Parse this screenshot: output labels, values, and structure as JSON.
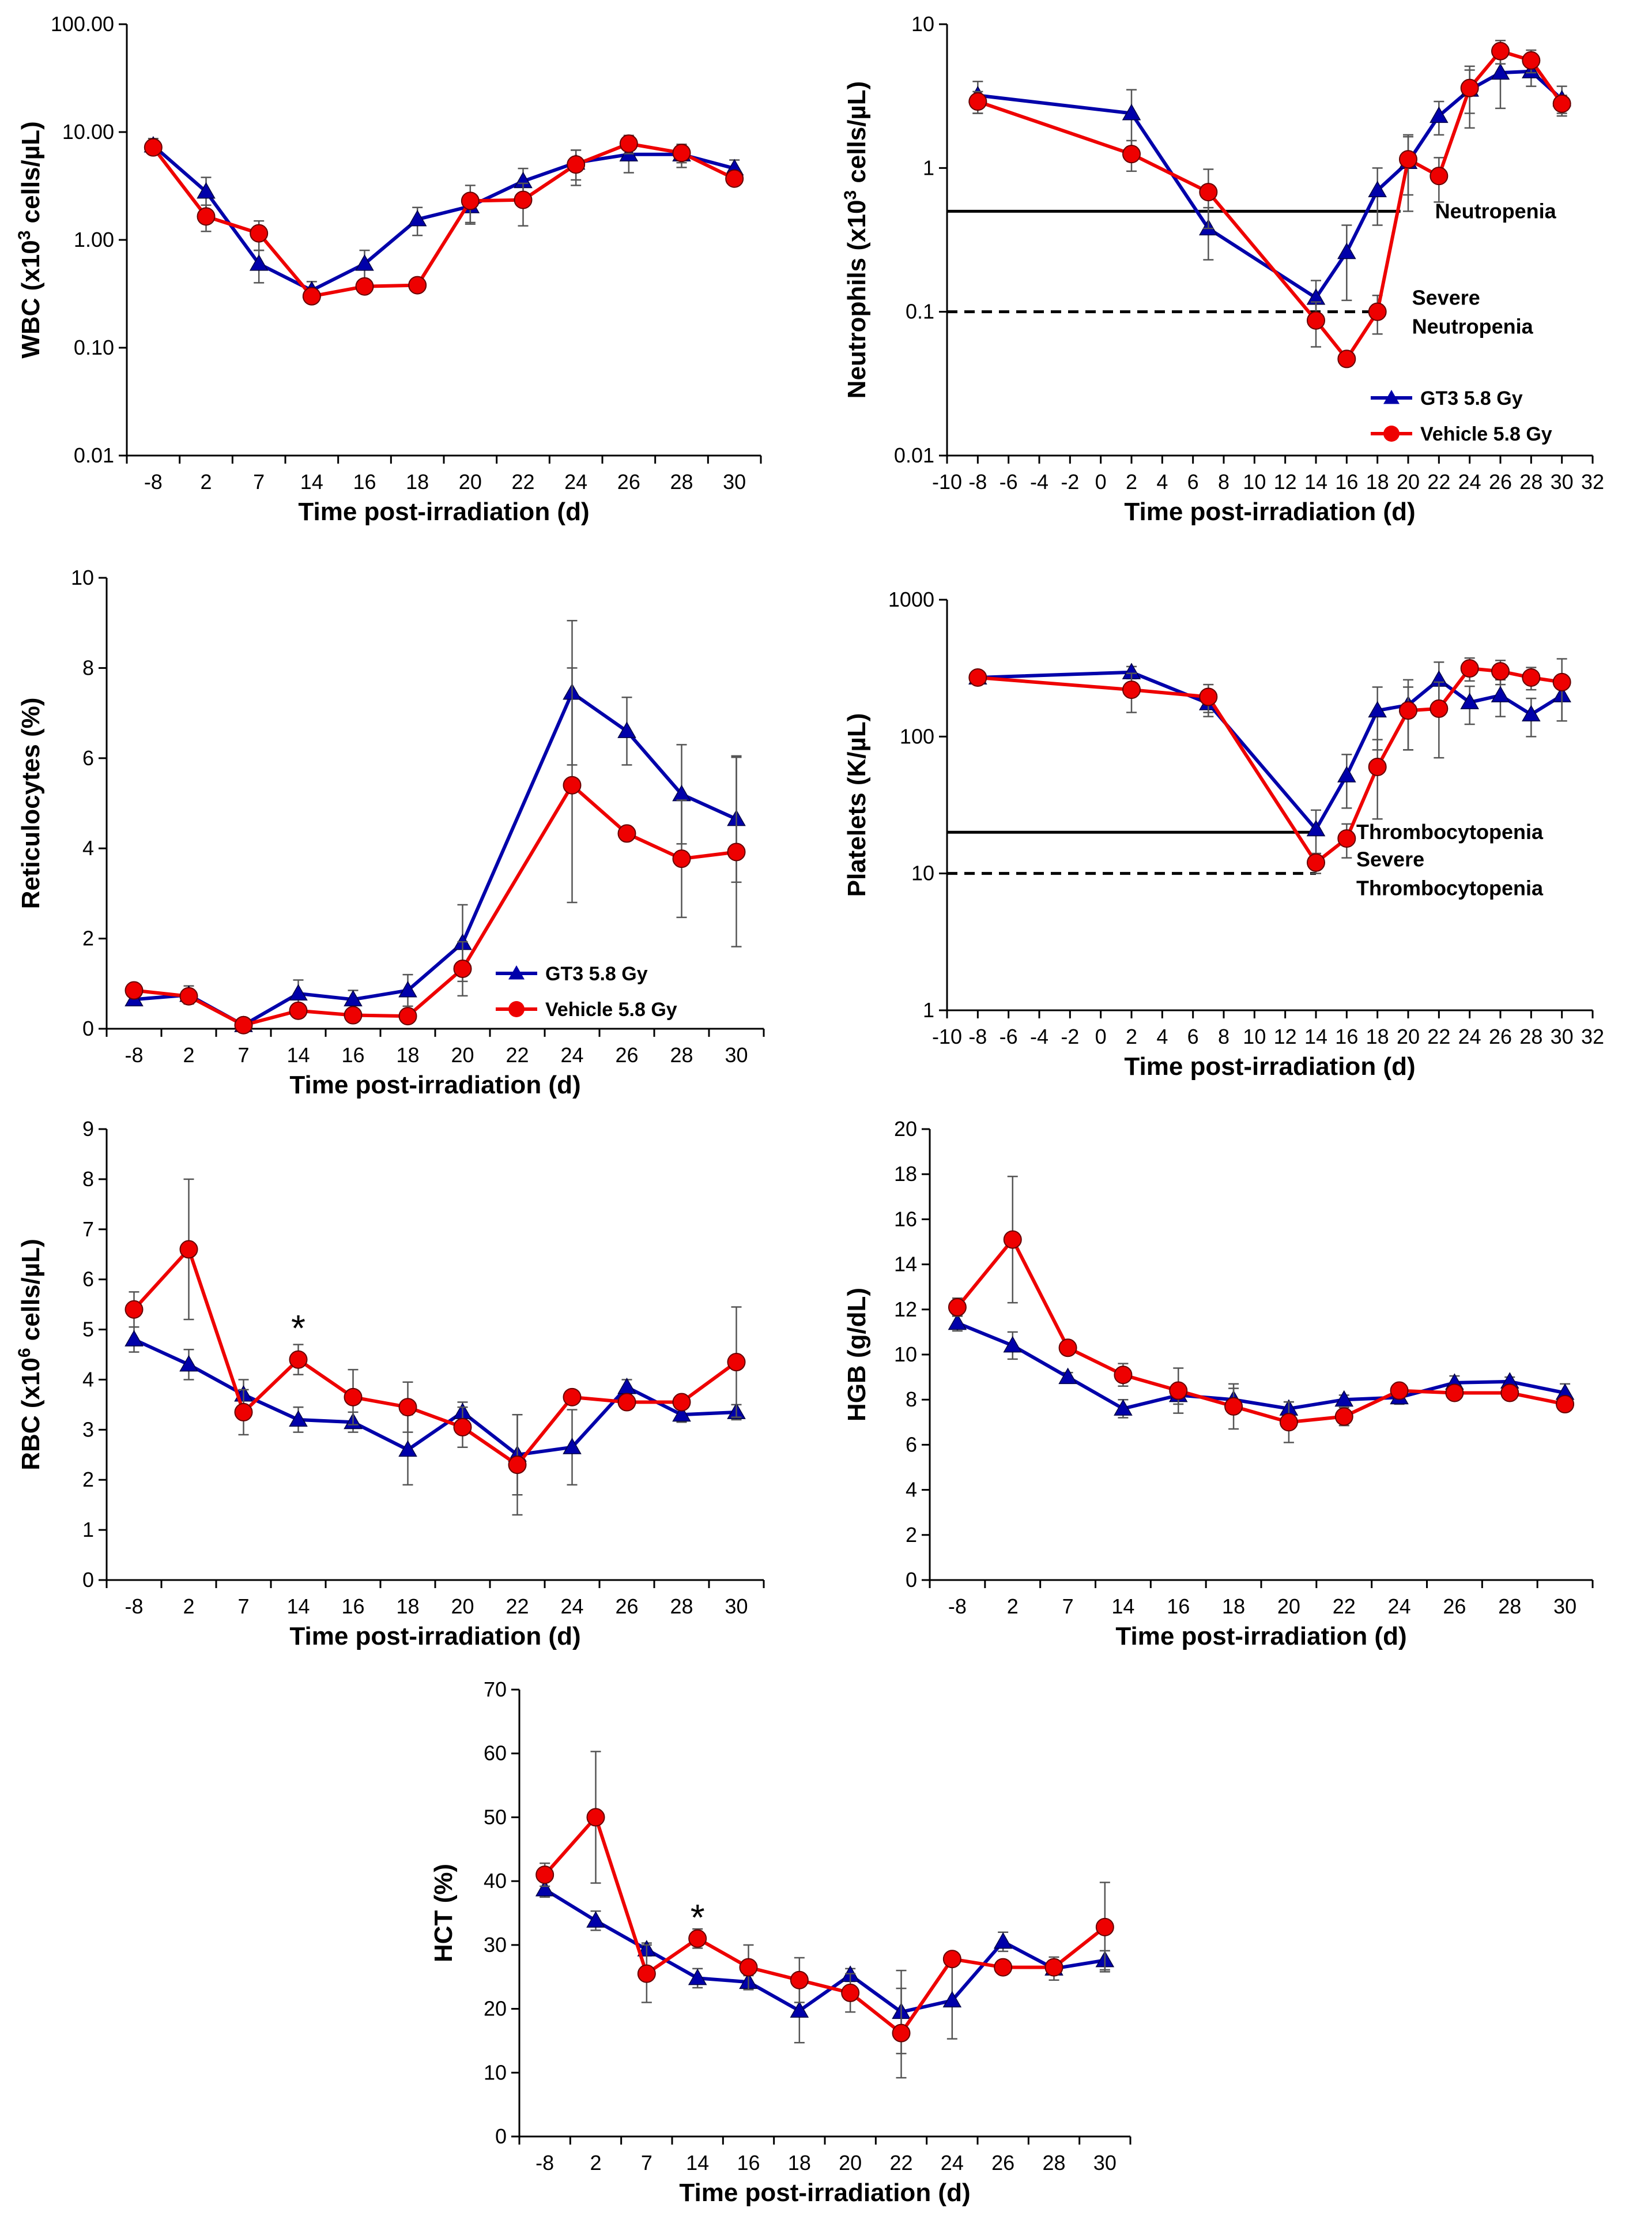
{
  "colors": {
    "gt3": "#0000aa",
    "vehicle": "#ee0000",
    "axis": "#000000",
    "error": "#555555"
  },
  "icons": {
    "gt3_marker": "triangle-marker-icon",
    "vehicle_marker": "circle-marker-icon"
  },
  "chart_data": [
    {
      "id": "wbc",
      "type": "line",
      "xscale": "category",
      "yscale": "log",
      "categories": [
        "-8",
        "2",
        "7",
        "14",
        "16",
        "18",
        "20",
        "22",
        "24",
        "26",
        "28",
        "30"
      ],
      "ylim": [
        0.01,
        100
      ],
      "yticks": [
        0.01,
        0.1,
        1,
        10,
        100
      ],
      "ytick_labels": [
        "0.01",
        "0.10",
        "1.00",
        "10.00",
        "100.00"
      ],
      "xlabel": "Time post-irradiation (d)",
      "ylabel_parts": [
        "WBC (x10",
        "3",
        " cells/µL)"
      ],
      "series": [
        {
          "name": "GT3 5.8 Gy",
          "values": [
            7.5,
            2.8,
            0.6,
            0.34,
            0.6,
            1.55,
            2.05,
            3.5,
            5.2,
            6.2,
            6.2,
            4.6
          ],
          "errors": [
            1.2,
            1.0,
            0.2,
            0.07,
            0.2,
            0.45,
            0.6,
            1.1,
            1.6,
            2.0,
            1.5,
            0.9
          ]
        },
        {
          "name": "Vehicle 5.8 Gy",
          "values": [
            7.2,
            1.65,
            1.15,
            0.3,
            0.37,
            0.38,
            2.3,
            2.35,
            5.0,
            7.8,
            6.4,
            3.7
          ],
          "errors": [
            1.0,
            0.45,
            0.35,
            0.04,
            0.05,
            0.04,
            0.9,
            1.0,
            1.8,
            1.5,
            1.2,
            0.4
          ]
        }
      ]
    },
    {
      "id": "neutrophils",
      "type": "line",
      "xscale": "linear",
      "yscale": "log",
      "x": [
        -8,
        2,
        7,
        14,
        16,
        18,
        20,
        22,
        24,
        26,
        28,
        30
      ],
      "xlim": [
        -10,
        32
      ],
      "xticks": [
        -10,
        -8,
        -6,
        -4,
        -2,
        0,
        2,
        4,
        6,
        8,
        10,
        12,
        14,
        16,
        18,
        20,
        22,
        24,
        26,
        28,
        30,
        32
      ],
      "xtick_labels": [
        "-10",
        "-8",
        "-6",
        "-4",
        "-2",
        "0",
        "2",
        "4",
        "6",
        "8",
        "10",
        "12",
        "14",
        "16",
        "18",
        "20",
        "22",
        "24",
        "26",
        "28",
        "30",
        "32"
      ],
      "ylim": [
        0.01,
        10
      ],
      "yticks": [
        0.01,
        0.1,
        1,
        10
      ],
      "ytick_labels": [
        "0.01",
        "0.1",
        "1",
        "10"
      ],
      "xlabel": "Time post-irradiation (d)",
      "ylabel_parts": [
        "Neutrophils (x10",
        "3",
        " cells/µL)"
      ],
      "series": [
        {
          "name": "GT3 5.8 Gy",
          "values": [
            3.2,
            2.4,
            0.38,
            0.125,
            0.26,
            0.7,
            1.1,
            2.3,
            3.5,
            4.6,
            4.7,
            3.0
          ],
          "errors": [
            0.8,
            1.1,
            0.15,
            0.04,
            0.14,
            0.3,
            0.6,
            0.6,
            1.6,
            2.0,
            1.0,
            0.7
          ]
        },
        {
          "name": "Vehicle 5.8 Gy",
          "values": [
            2.9,
            1.25,
            0.68,
            0.087,
            0.047,
            0.1,
            1.15,
            0.88,
            3.6,
            6.5,
            5.6,
            2.8
          ],
          "errors": [
            0.5,
            0.3,
            0.3,
            0.03,
            0.005,
            0.03,
            0.5,
            0.3,
            1.2,
            1.2,
            1.0,
            0.4
          ]
        }
      ],
      "reference_lines": [
        {
          "label_lines": [
            "Neutropenia"
          ],
          "y": 0.5,
          "x_from": -10,
          "x_to": 19.5,
          "style": "solid"
        },
        {
          "label_lines": [
            "Severe",
            "Neutropenia"
          ],
          "y": 0.1,
          "x_from": -10,
          "x_to": 18,
          "style": "dashed"
        }
      ],
      "legend": {
        "position": "bottom-right",
        "entries": [
          "GT3 5.8 Gy",
          "Vehicle 5.8 Gy"
        ]
      }
    },
    {
      "id": "reticulocytes",
      "type": "line",
      "xscale": "category",
      "yscale": "linear",
      "categories": [
        "-8",
        "2",
        "7",
        "14",
        "16",
        "18",
        "20",
        "22",
        "24",
        "26",
        "28",
        "30"
      ],
      "ylim": [
        0,
        10
      ],
      "yticks": [
        0,
        2,
        4,
        6,
        8,
        10
      ],
      "ytick_labels": [
        "0",
        "2",
        "4",
        "6",
        "8",
        "10"
      ],
      "xlabel": "Time post-irradiation (d)",
      "ylabel_parts": [
        "Reticulocytes (%)",
        "",
        ""
      ],
      "series": [
        {
          "name": "GT3 5.8 Gy",
          "values": [
            0.65,
            0.75,
            0.08,
            0.78,
            0.65,
            0.85,
            1.9,
            null,
            7.45,
            6.6,
            5.2,
            4.65
          ],
          "errors": [
            0.1,
            0.2,
            0.02,
            0.3,
            0.2,
            0.35,
            0.85,
            null,
            1.6,
            0.75,
            1.1,
            1.4
          ]
        },
        {
          "name": "Vehicle 5.8 Gy",
          "values": [
            0.85,
            0.72,
            0.08,
            0.4,
            0.3,
            0.28,
            1.33,
            null,
            5.4,
            4.33,
            3.77,
            3.92
          ],
          "errors": [
            0.1,
            0.15,
            0.03,
            0.1,
            0.05,
            0.05,
            0.6,
            null,
            2.6,
            0.1,
            1.3,
            2.1
          ]
        }
      ],
      "legend": {
        "position": "bottom-right",
        "entries": [
          "GT3 5.8 Gy",
          "Vehicle 5.8 Gy"
        ]
      }
    },
    {
      "id": "platelets",
      "type": "line",
      "xscale": "linear",
      "yscale": "log",
      "x": [
        -8,
        2,
        7,
        14,
        16,
        18,
        20,
        22,
        24,
        26,
        28,
        30
      ],
      "xlim": [
        -10,
        32
      ],
      "xticks": [
        -10,
        -8,
        -6,
        -4,
        -2,
        0,
        2,
        4,
        6,
        8,
        10,
        12,
        14,
        16,
        18,
        20,
        22,
        24,
        26,
        28,
        30,
        32
      ],
      "xtick_labels": [
        "-10",
        "-8",
        "-6",
        "-4",
        "-2",
        "0",
        "2",
        "4",
        "6",
        "8",
        "10",
        "12",
        "14",
        "16",
        "18",
        "20",
        "22",
        "24",
        "26",
        "28",
        "30",
        "32"
      ],
      "ylim": [
        1,
        1000
      ],
      "yticks": [
        1,
        10,
        100,
        1000
      ],
      "ytick_labels": [
        "1",
        "10",
        "100",
        "1000"
      ],
      "xlabel": "Time post-irradiation (d)",
      "ylabel_parts": [
        "Platelets (K/µL)",
        "",
        ""
      ],
      "series": [
        {
          "name": "GT3 5.8 Gy",
          "values": [
            270,
            295,
            175,
            21,
            52,
            155,
            170,
            260,
            178,
            200,
            145,
            200
          ],
          "errors": [
            20,
            30,
            35,
            8,
            22,
            75,
            90,
            90,
            55,
            60,
            45,
            70
          ]
        },
        {
          "name": "Vehicle 5.8 Gy",
          "values": [
            270,
            220,
            195,
            12,
            18,
            60,
            155,
            160,
            315,
            300,
            270,
            250
          ],
          "errors": [
            25,
            70,
            45,
            2,
            5,
            35,
            75,
            90,
            60,
            60,
            50,
            120
          ]
        }
      ],
      "reference_lines": [
        {
          "label_lines": [
            "Thrombocytopenia"
          ],
          "y": 20,
          "x_from": -10,
          "x_to": 14,
          "style": "solid"
        },
        {
          "label_lines": [
            "Severe",
            "Thrombocytopenia"
          ],
          "y": 10,
          "x_from": -10,
          "x_to": 14,
          "style": "dashed"
        }
      ]
    },
    {
      "id": "rbc",
      "type": "line",
      "xscale": "category",
      "yscale": "linear",
      "categories": [
        "-8",
        "2",
        "7",
        "14",
        "16",
        "18",
        "20",
        "22",
        "24",
        "26",
        "28",
        "30"
      ],
      "ylim": [
        0,
        9
      ],
      "yticks": [
        0,
        1,
        2,
        3,
        4,
        5,
        6,
        7,
        8,
        9
      ],
      "ytick_labels": [
        "0",
        "1",
        "2",
        "3",
        "4",
        "5",
        "6",
        "7",
        "8",
        "9"
      ],
      "xlabel": "Time post-irradiation (d)",
      "ylabel_parts": [
        "RBC (x10",
        "6",
        " cells/µL)"
      ],
      "series": [
        {
          "name": "GT3 5.8 Gy",
          "values": [
            4.8,
            4.3,
            3.7,
            3.2,
            3.15,
            2.6,
            3.35,
            2.5,
            2.65,
            3.85,
            3.3,
            3.35
          ],
          "errors": [
            0.25,
            0.3,
            0.3,
            0.25,
            0.2,
            0.7,
            0.2,
            0.8,
            0.75,
            0.15,
            0.15,
            0.15
          ]
        },
        {
          "name": "Vehicle 5.8 Gy",
          "values": [
            5.4,
            6.6,
            3.35,
            4.4,
            3.65,
            3.45,
            3.05,
            2.3,
            3.65,
            3.55,
            3.55,
            4.35
          ],
          "errors": [
            0.35,
            1.4,
            0.45,
            0.3,
            0.55,
            0.5,
            0.4,
            1.0,
            0.1,
            0.1,
            0.1,
            1.1
          ]
        }
      ],
      "annotations": [
        {
          "text": "*",
          "category_index": 3,
          "y": 5.05
        }
      ]
    },
    {
      "id": "hgb",
      "type": "line",
      "xscale": "category",
      "yscale": "linear",
      "categories": [
        "-8",
        "2",
        "7",
        "14",
        "16",
        "18",
        "20",
        "22",
        "24",
        "26",
        "28",
        "30"
      ],
      "ylim": [
        0,
        20
      ],
      "yticks": [
        0,
        2,
        4,
        6,
        8,
        10,
        12,
        14,
        16,
        18,
        20
      ],
      "ytick_labels": [
        "0",
        "2",
        "4",
        "6",
        "8",
        "10",
        "12",
        "14",
        "16",
        "18",
        "20"
      ],
      "xlabel": "Time post-irradiation (d)",
      "ylabel_parts": [
        "HGB (g/dL)",
        "",
        ""
      ],
      "series": [
        {
          "name": "GT3 5.8 Gy",
          "values": [
            11.4,
            10.4,
            9.0,
            7.6,
            8.2,
            8.0,
            7.6,
            8.0,
            8.1,
            8.75,
            8.8,
            8.3
          ],
          "errors": [
            0.35,
            0.6,
            0.2,
            0.4,
            0.4,
            0.5,
            0.3,
            0.2,
            0.3,
            0.3,
            0.2,
            0.4
          ]
        },
        {
          "name": "Vehicle 5.8 Gy",
          "values": [
            12.1,
            15.1,
            10.3,
            9.1,
            8.4,
            7.7,
            7.0,
            7.25,
            8.4,
            8.3,
            8.3,
            7.8
          ],
          "errors": [
            0.4,
            2.8,
            0.3,
            0.5,
            1.0,
            1.0,
            0.9,
            0.4,
            0.2,
            0.2,
            0.2,
            0.2
          ]
        }
      ]
    },
    {
      "id": "hct",
      "type": "line",
      "xscale": "category",
      "yscale": "linear",
      "categories": [
        "-8",
        "2",
        "7",
        "14",
        "16",
        "18",
        "20",
        "22",
        "24",
        "26",
        "28",
        "30"
      ],
      "ylim": [
        0,
        70
      ],
      "yticks": [
        0,
        10,
        20,
        30,
        40,
        50,
        60,
        70
      ],
      "ytick_labels": [
        "0",
        "10",
        "20",
        "30",
        "40",
        "50",
        "60",
        "70"
      ],
      "xlabel": "Time post-irradiation (d)",
      "ylabel_parts": [
        "HCT (%)",
        "",
        ""
      ],
      "series": [
        {
          "name": "GT3 5.8 Gy",
          "values": [
            38.7,
            33.8,
            29.3,
            24.8,
            24.2,
            19.7,
            25.3,
            19.5,
            21.3,
            30.5,
            26.3,
            27.6
          ],
          "errors": [
            1.2,
            1.5,
            1.0,
            1.5,
            1.0,
            5.0,
            1.0,
            6.5,
            6.0,
            1.5,
            1.8,
            1.5
          ]
        },
        {
          "name": "Vehicle 5.8 Gy",
          "values": [
            41.0,
            50.0,
            25.5,
            31.0,
            26.5,
            24.5,
            22.5,
            16.2,
            27.8,
            26.5,
            26.5,
            32.8
          ],
          "errors": [
            1.8,
            10.3,
            4.5,
            1.5,
            3.5,
            3.5,
            3.0,
            7.0,
            0.5,
            0.5,
            0.5,
            7.0
          ]
        }
      ],
      "annotations": [
        {
          "text": "*",
          "category_index": 3,
          "y": 34.5
        }
      ]
    }
  ]
}
